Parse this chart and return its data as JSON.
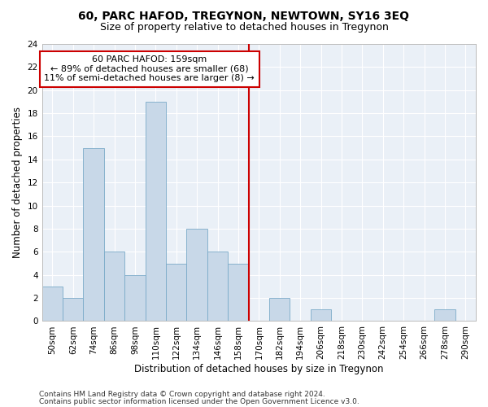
{
  "title": "60, PARC HAFOD, TREGYNON, NEWTOWN, SY16 3EQ",
  "subtitle": "Size of property relative to detached houses in Tregynon",
  "xlabel": "Distribution of detached houses by size in Tregynon",
  "ylabel": "Number of detached properties",
  "bin_labels": [
    "50sqm",
    "62sqm",
    "74sqm",
    "86sqm",
    "98sqm",
    "110sqm",
    "122sqm",
    "134sqm",
    "146sqm",
    "158sqm",
    "170sqm",
    "182sqm",
    "194sqm",
    "206sqm",
    "218sqm",
    "230sqm",
    "242sqm",
    "254sqm",
    "266sqm",
    "278sqm",
    "290sqm"
  ],
  "bar_heights": [
    3,
    2,
    15,
    6,
    4,
    19,
    5,
    8,
    6,
    5,
    0,
    2,
    0,
    1,
    0,
    0,
    0,
    0,
    0,
    1,
    0
  ],
  "bar_color": "#c8d8e8",
  "bar_edge_color": "#7aaac8",
  "vline_x_idx": 9.5,
  "vline_color": "#cc0000",
  "annotation_line1": "60 PARC HAFOD: 159sqm",
  "annotation_line2": "← 89% of detached houses are smaller (68)",
  "annotation_line3": "11% of semi-detached houses are larger (8) →",
  "annotation_box_color": "#ffffff",
  "annotation_box_edge_color": "#cc0000",
  "ylim": [
    0,
    24
  ],
  "yticks": [
    0,
    2,
    4,
    6,
    8,
    10,
    12,
    14,
    16,
    18,
    20,
    22,
    24
  ],
  "footer_line1": "Contains HM Land Registry data © Crown copyright and database right 2024.",
  "footer_line2": "Contains public sector information licensed under the Open Government Licence v3.0.",
  "background_color": "#eaf0f7",
  "grid_color": "#ffffff",
  "title_fontsize": 10,
  "subtitle_fontsize": 9,
  "axis_label_fontsize": 8.5,
  "tick_fontsize": 7.5,
  "annotation_fontsize": 8,
  "footer_fontsize": 6.5
}
